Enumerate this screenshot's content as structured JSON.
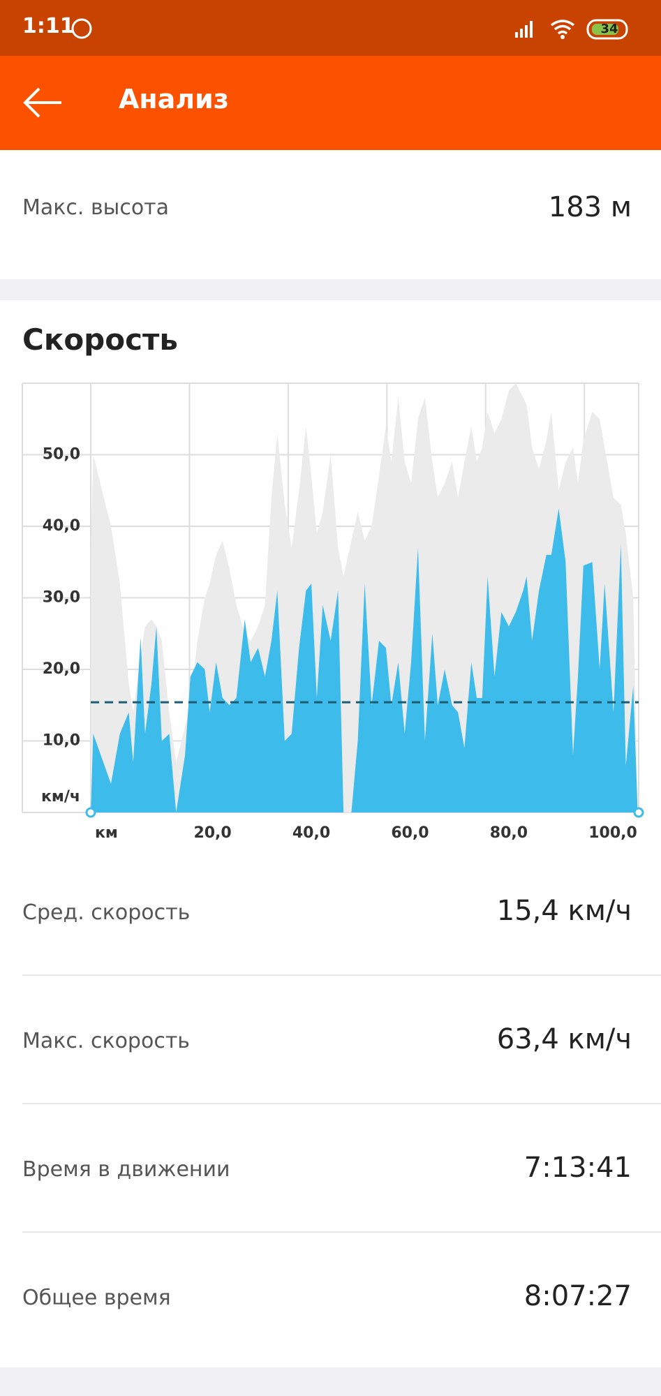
{
  "status_bar": {
    "time": "1:11",
    "battery": "34"
  },
  "header": {
    "title": "Анализ"
  },
  "elevation": {
    "label": "Макс. высота",
    "value": "183 м"
  },
  "speed_section": {
    "title": "Скорость"
  },
  "chart_data": {
    "type": "area",
    "x": [
      0,
      0.5,
      4.1,
      5.9,
      7.7,
      8.6,
      10.1,
      11,
      12.3,
      13.3,
      14.4,
      15.9,
      17.3,
      19.1,
      20.2,
      21.6,
      23.1,
      24.1,
      25.4,
      26.7,
      28.1,
      29.5,
      31.2,
      32.4,
      33.9,
      35.3,
      36.6,
      37.8,
      39.3,
      40.7,
      42.2,
      43.6,
      44.7,
      45.8,
      47,
      48.6,
      50.1,
      51.2,
      52.8,
      54.1,
      55.5,
      56.9,
      58.4,
      59.8,
      60.9,
      62.3,
      63.6,
      64.9,
      66.3,
      67.7,
      69.2,
      70.3,
      71.7,
      73.2,
      74.4,
      75.7,
      77.1,
      78.2,
      79.3,
      80.4,
      81.8,
      83.2,
      84.7,
      86.1,
      87.6,
      88.3,
      89.4,
      90.8,
      92.3,
      93.3,
      94.8,
      96.2,
      97.7,
      98.7,
      99.8,
      101.6,
      103.1,
      104.1,
      105.9,
      107.4,
      108.4,
      109.9,
      110.8
    ],
    "series": [
      {
        "color": "#ebebeb",
        "values": [
          36,
          50,
          40,
          32,
          18,
          14,
          22,
          26,
          27,
          26,
          24,
          14,
          7,
          12,
          15,
          24,
          30,
          32,
          36,
          38,
          34,
          29,
          25,
          24,
          26,
          29,
          44,
          53,
          43,
          37,
          45,
          54,
          47,
          39,
          42,
          50,
          37,
          33,
          38,
          42,
          38,
          40,
          47,
          54,
          49,
          58,
          49,
          46,
          55,
          58,
          49,
          44,
          46,
          49,
          44,
          49,
          54,
          49,
          51,
          56,
          53,
          55,
          59,
          60,
          58,
          57,
          51,
          48,
          52,
          56,
          45,
          49,
          51,
          46,
          52,
          56,
          55,
          51,
          44,
          43,
          39,
          30,
          0
        ]
      },
      {
        "color": "#3dbbeb",
        "values": [
          0,
          11,
          4,
          11,
          14,
          7,
          24.5,
          11,
          18,
          26,
          10,
          11,
          0,
          8,
          19,
          21,
          20,
          14,
          21,
          16,
          15,
          16,
          27,
          21,
          23,
          19,
          24,
          31,
          10,
          11,
          23,
          31,
          32,
          16,
          29,
          24,
          31,
          0,
          0,
          10,
          32,
          15,
          24,
          23,
          15,
          21,
          11,
          21,
          37,
          10,
          25,
          15,
          20,
          15,
          14,
          9,
          21,
          16,
          16,
          33,
          19,
          28,
          26,
          28,
          31,
          33,
          24,
          31,
          36,
          36,
          42.5,
          35,
          8,
          19,
          34.5,
          35,
          20,
          32,
          14,
          37.5,
          6.5,
          17.7,
          0
        ]
      }
    ],
    "reference_line": {
      "value": 15.4,
      "color": "#1b5c73"
    },
    "xlim": [
      0,
      111
    ],
    "ylim": [
      0,
      60
    ],
    "xticks": [
      {
        "value": 0,
        "label": "км"
      },
      {
        "value": 20,
        "label": "20,0"
      },
      {
        "value": 40,
        "label": "40,0"
      },
      {
        "value": 60,
        "label": "60,0"
      },
      {
        "value": 80,
        "label": "80,0"
      },
      {
        "value": 100,
        "label": "100,0"
      }
    ],
    "yticks": [
      {
        "value": 0,
        "label": "км/ч"
      },
      {
        "value": 10,
        "label": "10,0"
      },
      {
        "value": 20,
        "label": "20,0"
      },
      {
        "value": 30,
        "label": "30,0"
      },
      {
        "value": 40,
        "label": "40,0"
      },
      {
        "value": 50,
        "label": "50,0"
      }
    ],
    "grid": true
  },
  "stats": [
    {
      "label": "Сред. скорость",
      "value": "15,4 км/ч"
    },
    {
      "label": "Макс. скорость",
      "value": "63,4 км/ч"
    },
    {
      "label": "Время в движении",
      "value": "7:13:41"
    },
    {
      "label": "Общее время",
      "value": "8:07:27"
    }
  ]
}
